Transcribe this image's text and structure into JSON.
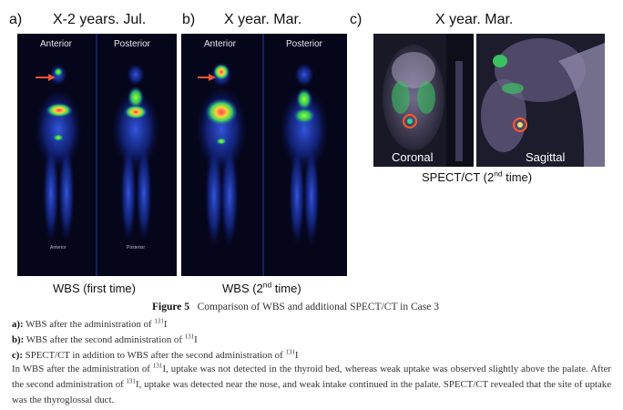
{
  "panels": {
    "a": {
      "letter": "a)",
      "date": "X-2 years.  Jul.",
      "views": [
        "Anterior",
        "Posterior"
      ],
      "bottom_views": [
        "Anterior",
        "Posterior"
      ],
      "caption": "WBS (first time)"
    },
    "b": {
      "letter": "b)",
      "date": "X  year.  Mar.",
      "views": [
        "Anterior",
        "Posterior"
      ],
      "caption_main": "WBS (2",
      "caption_sup": "nd",
      "caption_end": " time)"
    },
    "c": {
      "letter": "c)",
      "date": "X  year.  Mar.",
      "views": [
        "Coronal",
        "Sagittal"
      ],
      "caption_main": "SPECT/CT  (2",
      "caption_sup": "nd",
      "caption_end": " time)"
    }
  },
  "figure": {
    "label": "Figure 5",
    "title": "Comparison of WBS and additional SPECT/CT in Case 3"
  },
  "notes": [
    {
      "key": "a):",
      "text": " WBS after the administration of ",
      "sup": "131",
      "end": "I"
    },
    {
      "key": "b):",
      "text": " WBS after the second administration of ",
      "sup": "131",
      "end": "I"
    },
    {
      "key": "c):",
      "text": " SPECT/CT in addition to WBS after the second administration of ",
      "sup": "131",
      "end": "I"
    }
  ],
  "paragraph": {
    "p1": "In WBS after the administration of ",
    "p2": "I, uptake was not detected in the thyroid bed, whereas weak uptake was observed slightly above the palate. After the second administration of ",
    "p3": "I, uptake was detected near the nose, and weak intake continued in the palate. SPECT/CT revealed that the site of uptake was the thyroglossal duct.",
    "sup": "131"
  },
  "colors": {
    "scan_background": "#05061a",
    "body_glow": "#1f3dcc",
    "hotspot": "#e0264a",
    "arrow": "#e8553a",
    "ring": "#ff5a2a"
  },
  "icons": [
    "arrow-icon"
  ]
}
